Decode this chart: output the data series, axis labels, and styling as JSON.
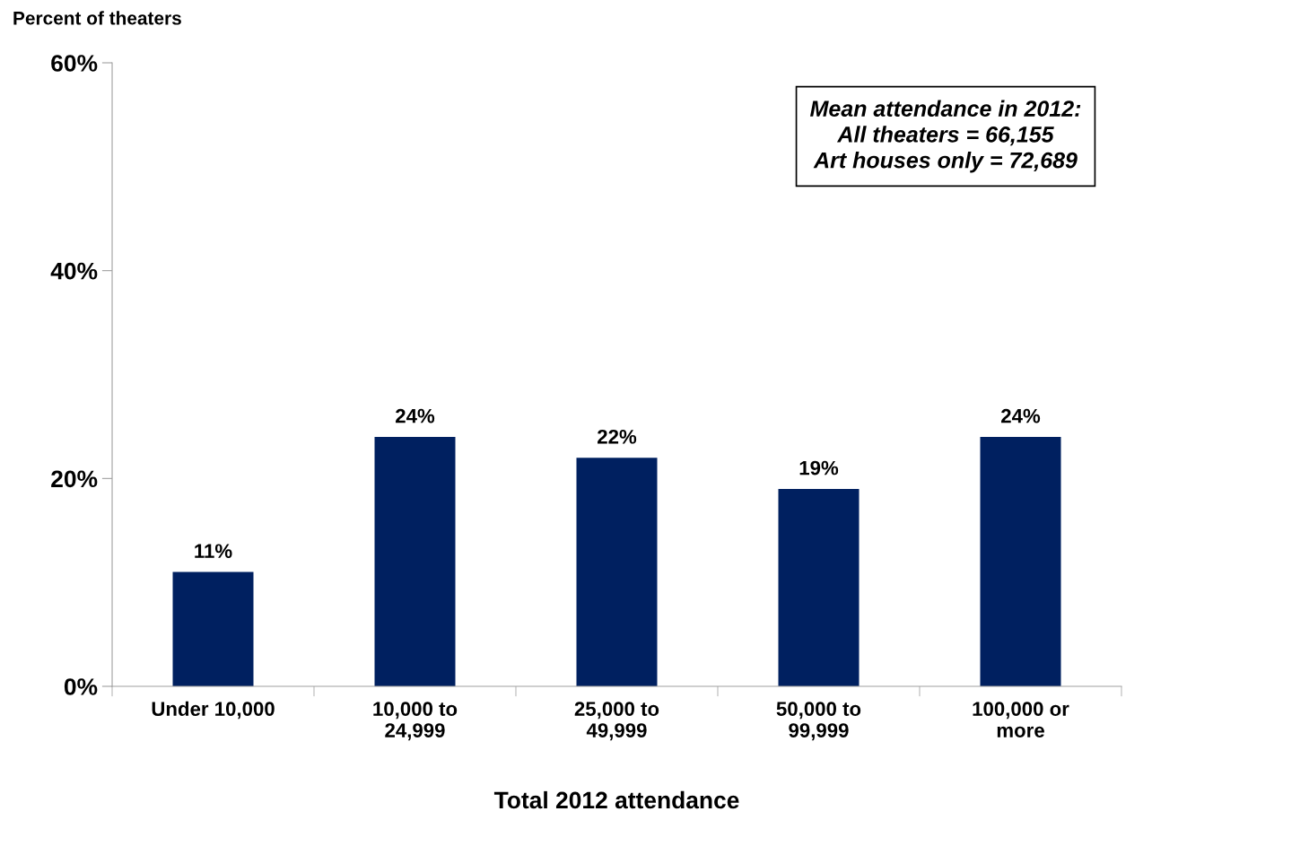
{
  "chart_data": {
    "type": "bar",
    "ylabel": "Percent of theaters",
    "xlabel": "Total 2012 attendance",
    "categories": [
      "Under 10,000",
      "10,000 to\n24,999",
      "25,000 to\n49,999",
      "50,000 to\n99,999",
      "100,000 or\nmore"
    ],
    "values": [
      11,
      24,
      22,
      19,
      24
    ],
    "color": "#002060",
    "value_labels": [
      "11%",
      "24%",
      "22%",
      "19%",
      "24%"
    ],
    "ylim": [
      0,
      60
    ],
    "yticks": [
      {
        "value": 0,
        "label": "0%"
      },
      {
        "value": 20,
        "label": "20%"
      },
      {
        "value": 40,
        "label": "40%"
      },
      {
        "value": 60,
        "label": "60%"
      }
    ],
    "annotations": [
      "Mean attendance in 2012:\nAll theaters = 66,155\nArt houses only = 72,689"
    ],
    "grid": false,
    "legend": false
  }
}
